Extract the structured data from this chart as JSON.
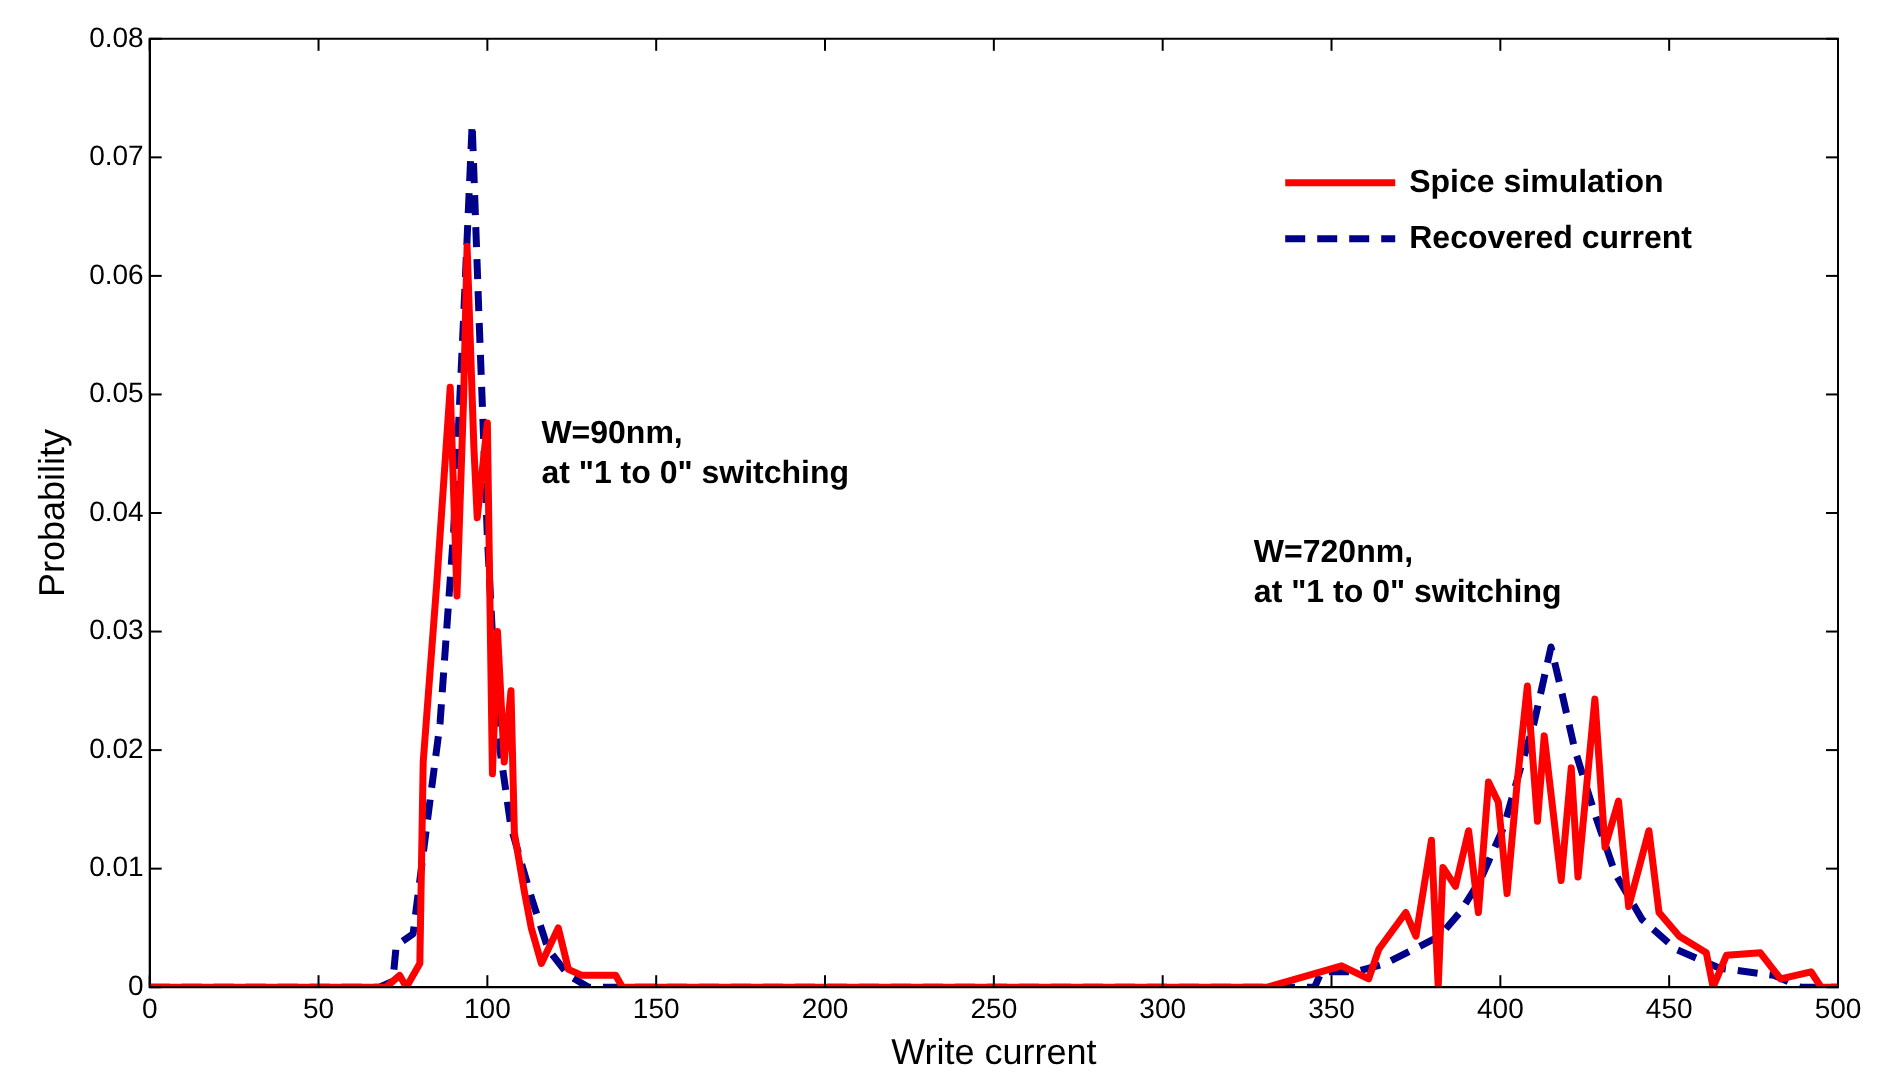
{
  "chart_data": {
    "type": "line",
    "xlabel": "Write current",
    "ylabel": "Probability",
    "xlim": [
      0,
      500
    ],
    "xticks": [
      0,
      50,
      100,
      150,
      200,
      250,
      300,
      350,
      400,
      450,
      500
    ],
    "ylim": [
      0,
      0.08
    ],
    "yticks": [
      0,
      0.01,
      0.02,
      0.03,
      0.04,
      0.05,
      0.06,
      0.07,
      0.08
    ],
    "grid": false,
    "legend": "top right",
    "marker": "none",
    "annotations": [
      "W=90nm,\nat \"1 to 0\" switching",
      "W=720nm,\nat \"1 to 0\" switching"
    ],
    "series": [
      {
        "name": "Spice simulation",
        "color": "#ff0000",
        "line_style": "solid",
        "x": [
          0,
          70,
          74,
          76,
          80,
          81,
          85,
          89,
          91,
          93,
          94,
          96,
          97,
          100,
          101.5,
          103,
          105,
          107,
          108,
          111,
          113,
          116,
          121,
          124,
          128,
          138,
          140,
          331,
          353,
          361,
          364,
          372,
          375,
          379.6,
          381.6,
          383,
          386.7,
          390.6,
          393.5,
          396.5,
          399.4,
          402,
          405,
          408,
          411,
          413,
          418,
          421,
          423,
          428,
          431,
          435,
          438,
          444,
          447,
          453,
          461,
          463,
          467,
          477,
          483,
          492,
          495,
          500
        ],
        "values": [
          0,
          0,
          0.001,
          0,
          0.002,
          0.019,
          0.034,
          0.0506,
          0.033,
          0.05,
          0.0625,
          0.0456,
          0.0396,
          0.0476,
          0.018,
          0.03,
          0.019,
          0.025,
          0.013,
          0.008,
          0.005,
          0.002,
          0.005,
          0.0015,
          0.001,
          0.001,
          0,
          0,
          0.0018,
          0.0007,
          0.0032,
          0.0063,
          0.0043,
          0.0124,
          0,
          0.0101,
          0.0085,
          0.0132,
          0.0063,
          0.0173,
          0.0156,
          0.0079,
          0.0173,
          0.0254,
          0.014,
          0.0212,
          0.009,
          0.0185,
          0.0093,
          0.0243,
          0.0118,
          0.0157,
          0.0068,
          0.0132,
          0.0063,
          0.0043,
          0.0029,
          0,
          0.0027,
          0.0029,
          0.0007,
          0.0013,
          0,
          0
        ]
      },
      {
        "name": "Recovered current",
        "color": "#00008b",
        "line_style": "dashed",
        "x": [
          0,
          68,
          72,
          73,
          78,
          82,
          86,
          90,
          93,
          95.5,
          97.5,
          100,
          103,
          107,
          113,
          118,
          124,
          130,
          345,
          347,
          357,
          366,
          373,
          382,
          388,
          394,
          401,
          406,
          410,
          415,
          418,
          422,
          428,
          434,
          442,
          452,
          465,
          481,
          489,
          500
        ],
        "values": [
          0,
          0,
          0.0005,
          0.0035,
          0.0045,
          0.0135,
          0.0223,
          0.0384,
          0.0567,
          0.0728,
          0.0567,
          0.038,
          0.0215,
          0.0135,
          0.0076,
          0.0032,
          0.001,
          0,
          0,
          0.0013,
          0.0013,
          0.002,
          0.003,
          0.0043,
          0.0063,
          0.009,
          0.0135,
          0.0185,
          0.0223,
          0.0287,
          0.0251,
          0.0201,
          0.0146,
          0.0096,
          0.0057,
          0.0032,
          0.0016,
          0.001,
          0,
          0
        ]
      }
    ]
  }
}
